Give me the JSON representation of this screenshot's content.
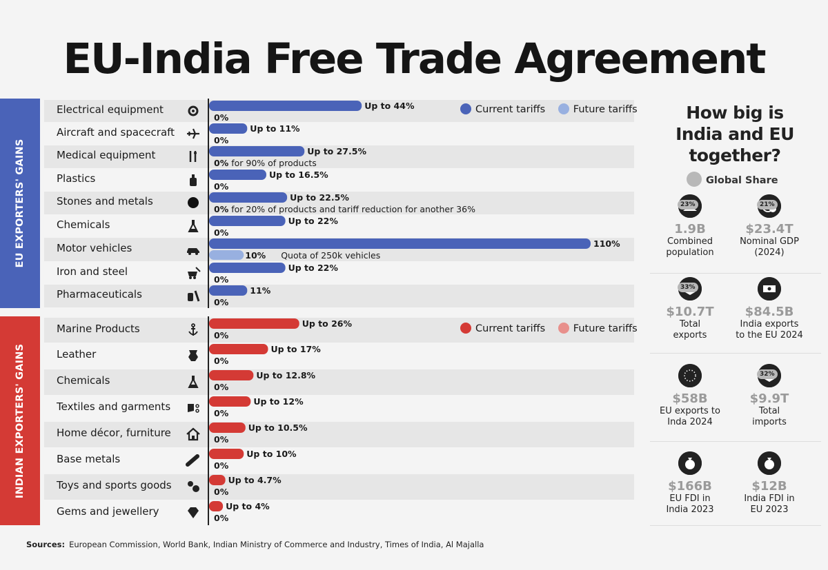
{
  "title": "EU-India Free Trade Agreement",
  "colors": {
    "eu_current": "#4a63b8",
    "eu_future": "#98b0e0",
    "in_current": "#d43a35",
    "in_future": "#e8908c"
  },
  "legend": {
    "current": "Current tariffs",
    "future": "Future tariffs"
  },
  "chart_data": {
    "type": "bar",
    "title": "EU-India Free Trade Agreement",
    "xlabel": "",
    "ylabel": "",
    "xlim": [
      0,
      110
    ],
    "groups": [
      {
        "name": "EU EXPORTERS' GAINS",
        "color_key": "eu",
        "categories": [
          {
            "label": "Electrical equipment",
            "icon": "gear-icon",
            "current": 44,
            "current_label": "Up to 44%",
            "future": 0,
            "future_label": "0%",
            "note": ""
          },
          {
            "label": "Aircraft and spacecraft",
            "icon": "airplane-icon",
            "current": 11,
            "current_label": "Up to 11%",
            "future": 0,
            "future_label": "0%",
            "note": ""
          },
          {
            "label": "Medical  equipment",
            "icon": "medical-tools-icon",
            "current": 27.5,
            "current_label": "Up to 27.5%",
            "future": 0,
            "future_label": "0%",
            "note": " for 90% of products"
          },
          {
            "label": "Plastics",
            "icon": "bottle-icon",
            "current": 16.5,
            "current_label": "Up to 16.5%",
            "future": 0,
            "future_label": "0%",
            "note": ""
          },
          {
            "label": "Stones and metals",
            "icon": "stone-icon",
            "current": 22.5,
            "current_label": "Up to 22.5%",
            "future": 0,
            "future_label": "0%",
            "note": " for 20% of products and tariff reduction for another 36%"
          },
          {
            "label": "Chemicals",
            "icon": "flask-icon",
            "current": 22,
            "current_label": "Up to 22%",
            "future": 0,
            "future_label": "0%",
            "note": ""
          },
          {
            "label": "Motor vehicles",
            "icon": "car-icon",
            "current": 110,
            "current_label": "110%",
            "future": 10,
            "future_label": "10%",
            "note": "Quota of 250k vehicles"
          },
          {
            "label": "Iron and steel",
            "icon": "mining-cart-icon",
            "current": 22,
            "current_label": "Up to 22%",
            "future": 0,
            "future_label": "0%",
            "note": ""
          },
          {
            "label": "Pharmaceuticals",
            "icon": "pills-icon",
            "current": 11,
            "current_label": "11%",
            "future": 0,
            "future_label": "0%",
            "note": ""
          }
        ]
      },
      {
        "name": "INDIAN EXPORTERS' GAINS",
        "color_key": "in",
        "categories": [
          {
            "label": "Marine Products",
            "icon": "anchor-icon",
            "current": 26,
            "current_label": "Up to 26%",
            "future": 0,
            "future_label": "0%",
            "note": ""
          },
          {
            "label": "Leather",
            "icon": "leather-hide-icon",
            "current": 17,
            "current_label": "Up to 17%",
            "future": 0,
            "future_label": "0%",
            "note": ""
          },
          {
            "label": "Chemicals",
            "icon": "flask-icon",
            "current": 12.8,
            "current_label": "Up to 12.8%",
            "future": 0,
            "future_label": "0%",
            "note": ""
          },
          {
            "label": "Textiles and garments",
            "icon": "textile-scissors-icon",
            "current": 12,
            "current_label": "Up to 12%",
            "future": 0,
            "future_label": "0%",
            "note": ""
          },
          {
            "label": "Home décor, furniture",
            "icon": "home-icon",
            "current": 10.5,
            "current_label": "Up to 10.5%",
            "future": 0,
            "future_label": "0%",
            "note": ""
          },
          {
            "label": "Base metals",
            "icon": "pipe-icon",
            "current": 10,
            "current_label": "Up to 10%",
            "future": 0,
            "future_label": "0%",
            "note": ""
          },
          {
            "label": "Toys and sports goods",
            "icon": "toy-icon",
            "current": 4.7,
            "current_label": "Up to 4.7%",
            "future": 0,
            "future_label": "0%",
            "note": ""
          },
          {
            "label": "Gems and jewellery",
            "icon": "diamond-icon",
            "current": 4,
            "current_label": "Up to 4%",
            "future": 0,
            "future_label": "0%",
            "note": ""
          }
        ]
      }
    ]
  },
  "side": {
    "title_lines": [
      "How big is",
      "India and EU",
      "together?"
    ],
    "global_share_label": "Global Share",
    "stats": [
      {
        "icon": "people-icon",
        "badge": "23%",
        "value": "1.9B",
        "desc": [
          "Combined",
          "population"
        ]
      },
      {
        "icon": "globe-dollar-icon",
        "badge": "21%",
        "value": "$23.4T",
        "desc": [
          "Nominal GDP",
          "(2024)"
        ]
      },
      {
        "icon": "box-export-icon",
        "badge": "33%",
        "value": "$10.7T",
        "desc": [
          "Total",
          "exports"
        ]
      },
      {
        "icon": "india-flag-icon",
        "badge": "",
        "value": "$84.5B",
        "desc": [
          "India exports",
          "to the EU 2024"
        ]
      },
      {
        "icon": "eu-flag-icon",
        "badge": "",
        "value": "$58B",
        "desc": [
          "EU exports to",
          "Inda 2024"
        ]
      },
      {
        "icon": "box-import-icon",
        "badge": "32%",
        "value": "$9.9T",
        "desc": [
          "Total",
          "imports"
        ]
      },
      {
        "icon": "money-bag-icon",
        "badge": "",
        "value": "$166B",
        "desc": [
          "EU FDI in",
          "India 2023"
        ]
      },
      {
        "icon": "money-bag-icon",
        "badge": "",
        "value": "$12B",
        "desc": [
          "India FDI in",
          "EU 2023"
        ]
      }
    ]
  },
  "sources": {
    "label": "Sources:",
    "text": "European Commission, World Bank, Indian Ministry of Commerce and Industry,  Times of India, Al Majalla"
  }
}
